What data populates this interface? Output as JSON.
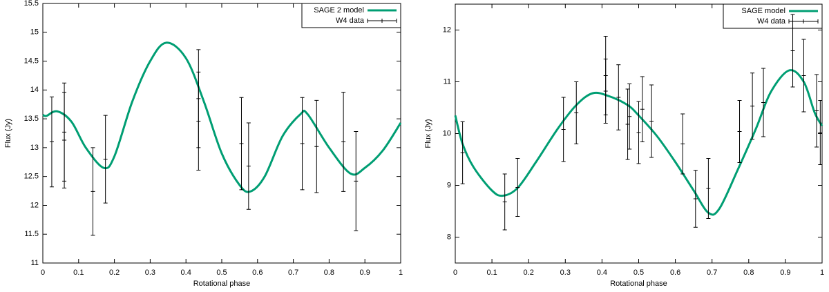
{
  "chart_data": [
    {
      "type": "line",
      "xlabel": "Rotational phase",
      "ylabel": "Flux (Jy)",
      "xlim": [
        0,
        1
      ],
      "xticks": [
        0,
        0.1,
        0.2,
        0.3,
        0.4,
        0.5,
        0.6,
        0.7,
        0.8,
        0.9,
        1
      ],
      "ylim": [
        11,
        15.5
      ],
      "yticks": [
        11,
        11.5,
        12,
        12.5,
        13,
        13.5,
        14,
        14.5,
        15,
        15.5
      ],
      "legend": "upper right",
      "series": [
        {
          "name": "SAGE 2 model",
          "color": "#009e73",
          "x": [
            0,
            0.01,
            0.04,
            0.08,
            0.12,
            0.17,
            0.2,
            0.25,
            0.3,
            0.345,
            0.4,
            0.45,
            0.5,
            0.55,
            0.58,
            0.62,
            0.67,
            0.72,
            0.74,
            0.8,
            0.86,
            0.9,
            0.95,
            1
          ],
          "values": [
            13.57,
            13.55,
            13.63,
            13.45,
            13.0,
            12.65,
            12.85,
            13.8,
            14.5,
            14.82,
            14.55,
            13.8,
            12.9,
            12.35,
            12.24,
            12.5,
            13.2,
            13.58,
            13.58,
            13.0,
            12.55,
            12.65,
            12.95,
            13.43
          ]
        },
        {
          "name": "W4 data",
          "color": "#000000",
          "x": [
            0.025,
            0.06,
            0.06,
            0.14,
            0.175,
            0.435,
            0.435,
            0.555,
            0.575,
            0.725,
            0.765,
            0.84,
            0.875
          ],
          "values": [
            13.1,
            13.27,
            13.13,
            12.24,
            12.8,
            13.46,
            13.85,
            13.07,
            12.68,
            13.07,
            13.02,
            13.1,
            12.42
          ],
          "errors": [
            0.78,
            0.85,
            0.83,
            0.76,
            0.76,
            0.85,
            0.85,
            0.8,
            0.75,
            0.8,
            0.8,
            0.86,
            0.86
          ]
        }
      ]
    },
    {
      "type": "line",
      "xlabel": "Rotational phase",
      "ylabel": "Flux (Jy)",
      "xlim": [
        0,
        1
      ],
      "xticks": [
        0,
        0.1,
        0.2,
        0.3,
        0.4,
        0.5,
        0.6,
        0.7,
        0.8,
        0.9,
        1
      ],
      "ylim": [
        7.5,
        12.5
      ],
      "yticks": [
        8,
        9,
        10,
        11,
        12
      ],
      "legend": "upper right",
      "series": [
        {
          "name": "SAGE model",
          "color": "#009e73",
          "x": [
            0,
            0.02,
            0.05,
            0.1,
            0.13,
            0.17,
            0.22,
            0.28,
            0.33,
            0.375,
            0.42,
            0.47,
            0.5,
            0.55,
            0.6,
            0.65,
            0.69,
            0.72,
            0.77,
            0.82,
            0.86,
            0.91,
            0.95,
            0.98,
            1
          ],
          "values": [
            10.35,
            9.8,
            9.35,
            8.9,
            8.8,
            8.95,
            9.45,
            10.1,
            10.55,
            10.78,
            10.72,
            10.55,
            10.35,
            9.95,
            9.45,
            8.9,
            8.47,
            8.55,
            9.3,
            10.1,
            10.8,
            11.22,
            11.0,
            10.4,
            10.15
          ]
        },
        {
          "name": "W4 data",
          "color": "#000000",
          "x": [
            0.02,
            0.135,
            0.17,
            0.295,
            0.33,
            0.41,
            0.41,
            0.445,
            0.47,
            0.475,
            0.5,
            0.51,
            0.535,
            0.62,
            0.655,
            0.69,
            0.775,
            0.81,
            0.84,
            0.92,
            0.95,
            0.985,
            0.995
          ],
          "values": [
            9.63,
            8.68,
            8.96,
            10.08,
            10.4,
            11.12,
            10.82,
            10.7,
            10.18,
            10.33,
            10.02,
            10.47,
            10.24,
            9.8,
            8.74,
            8.94,
            10.04,
            10.53,
            10.6,
            11.6,
            11.12,
            10.44,
            10.02
          ],
          "errors": [
            0.6,
            0.54,
            0.56,
            0.62,
            0.6,
            0.76,
            0.62,
            0.63,
            0.68,
            0.63,
            0.6,
            0.63,
            0.7,
            0.58,
            0.55,
            0.58,
            0.6,
            0.64,
            0.66,
            0.7,
            0.7,
            0.7,
            0.62
          ]
        }
      ]
    }
  ]
}
